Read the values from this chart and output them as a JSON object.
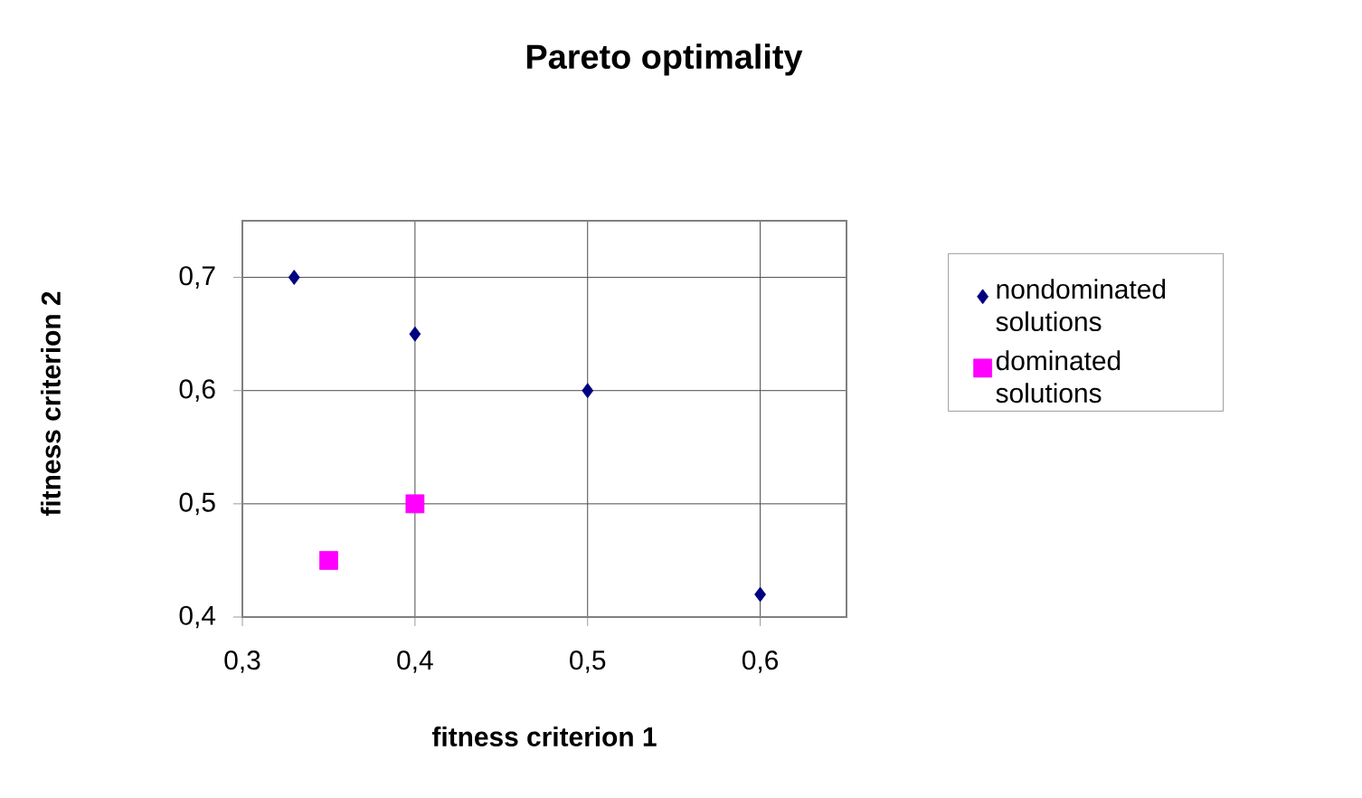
{
  "chart_data": {
    "type": "scatter",
    "title": "Pareto optimality",
    "xlabel": "fitness criterion 1",
    "ylabel": "fitness criterion 2",
    "series": [
      {
        "name": "nondominated solutions",
        "color": "#000080",
        "marker": "diamond",
        "x": [
          0.33,
          0.4,
          0.5,
          0.6
        ],
        "values": [
          0.7,
          0.65,
          0.6,
          0.42
        ]
      },
      {
        "name": "dominated solutions",
        "color": "#ff00ff",
        "marker": "square",
        "x": [
          0.35,
          0.4
        ],
        "values": [
          0.45,
          0.5
        ]
      }
    ],
    "xlim": [
      0.3,
      0.65
    ],
    "ylim": [
      0.4,
      0.75
    ],
    "xticks": [
      {
        "value": 0.3,
        "label": "0,3"
      },
      {
        "value": 0.4,
        "label": "0,4"
      },
      {
        "value": 0.5,
        "label": "0,5"
      },
      {
        "value": 0.6,
        "label": "0,6"
      }
    ],
    "yticks": [
      {
        "value": 0.4,
        "label": "0,4"
      },
      {
        "value": 0.5,
        "label": "0,5"
      },
      {
        "value": 0.6,
        "label": "0,6"
      },
      {
        "value": 0.7,
        "label": "0,7"
      }
    ],
    "grid": true,
    "legend": "right"
  }
}
